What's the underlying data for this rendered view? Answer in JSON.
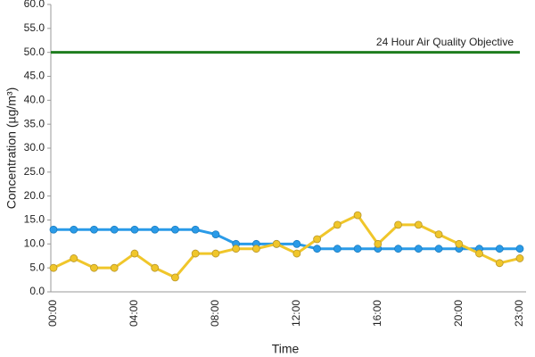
{
  "chart_data": {
    "type": "line",
    "y_label": "Concentration (µg/m³)",
    "x_label": "Time",
    "categories": [
      "00:00",
      null,
      null,
      null,
      "04:00",
      null,
      null,
      null,
      "08:00",
      null,
      null,
      null,
      "12:00",
      null,
      null,
      null,
      "16:00",
      null,
      null,
      null,
      "20:00",
      null,
      null,
      "23:00"
    ],
    "series": [
      {
        "color": "#2a9be8",
        "values": [
          13,
          13,
          13,
          13,
          13,
          13,
          13,
          13,
          12,
          10,
          10,
          10,
          10,
          9,
          9,
          9,
          9,
          9,
          9,
          9,
          9,
          9,
          9,
          9
        ]
      },
      {
        "color": "#f0c62a",
        "values": [
          5,
          7,
          5,
          5,
          8,
          5,
          3,
          8,
          8,
          9,
          9,
          10,
          8,
          11,
          14,
          16,
          10,
          14,
          14,
          12,
          10,
          8,
          6,
          7
        ]
      }
    ],
    "objective": {
      "value": 50,
      "label": "24 Hour Air Quality Objective",
      "color": "#1e7d1e"
    },
    "ylim": [
      0,
      60
    ],
    "yticks": [
      {
        "value": 0,
        "label": "0.0"
      },
      {
        "value": 5,
        "label": "5.0"
      },
      {
        "value": 10,
        "label": "10.0"
      },
      {
        "value": 15,
        "label": "15.0"
      },
      {
        "value": 20,
        "label": "20.0"
      },
      {
        "value": 25,
        "label": "25.0"
      },
      {
        "value": 30,
        "label": "30.0"
      },
      {
        "value": 35,
        "label": "35.0"
      },
      {
        "value": 40,
        "label": "40.0"
      },
      {
        "value": 45,
        "label": "45.0"
      },
      {
        "value": 50,
        "label": "50.0"
      },
      {
        "value": 55,
        "label": "55.0"
      },
      {
        "value": 60,
        "label": "60.0"
      }
    ],
    "grid": false
  }
}
